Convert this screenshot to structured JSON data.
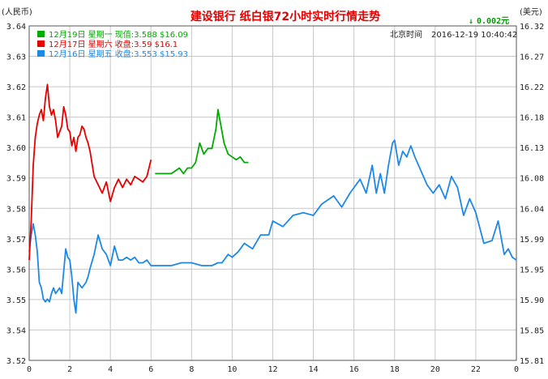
{
  "chart_data": {
    "type": "line",
    "title": "建设银行  纸白银72小时实时行情走势",
    "left_unit": "(人民币)",
    "right_unit": "(美元)",
    "change": {
      "arrow": "↓",
      "value": "0.002元"
    },
    "clock": {
      "label": "北京时间",
      "value": "2016-12-19  10:40:42"
    },
    "y_left": {
      "ticks": [
        "3.64",
        "3.63",
        "3.62",
        "3.61",
        "3.60",
        "3.59",
        "3.58",
        "3.57",
        "3.56",
        "3.55",
        "3.54",
        "3.52"
      ]
    },
    "y_right": {
      "ticks": [
        "16.32",
        "16.27",
        "16.22",
        "16.18",
        "16.13",
        "16.08",
        "16.04",
        "15.99",
        "15.95",
        "15.90",
        "15.85",
        "15.81"
      ]
    },
    "x_ticks": [
      "0",
      "2",
      "4",
      "6",
      "8",
      "10",
      "12",
      "14",
      "16",
      "18",
      "20",
      "22",
      "0"
    ],
    "ylim": [
      3.52,
      3.64
    ],
    "xlim": [
      0,
      24
    ],
    "grid": true,
    "legend_position": "top-left",
    "colors": {
      "green": "#00aa00",
      "red": "#e60000",
      "blue": "#1e88e5",
      "title": "#e60000",
      "grid": "#c8c8c8"
    },
    "series": [
      {
        "name": "12月19日  星期一  现值:3.588  $16.09",
        "color": "#00aa00",
        "x": [
          6.2,
          7.0,
          7.2,
          7.4,
          7.6,
          7.8,
          8.0,
          8.2,
          8.4,
          8.6,
          8.8,
          9.0,
          9.2,
          9.3,
          9.4,
          9.5,
          9.6,
          9.8,
          10.0,
          10.2,
          10.4,
          10.6,
          10.8
        ],
        "y": [
          3.587,
          3.587,
          3.588,
          3.589,
          3.587,
          3.589,
          3.589,
          3.591,
          3.598,
          3.594,
          3.596,
          3.596,
          3.603,
          3.61,
          3.606,
          3.602,
          3.598,
          3.594,
          3.593,
          3.592,
          3.593,
          3.591,
          3.591
        ]
      },
      {
        "name": "12月17日  星期六  收盘:3.59  $16.1",
        "color": "#e60000",
        "x": [
          0.0,
          0.1,
          0.2,
          0.3,
          0.4,
          0.5,
          0.6,
          0.7,
          0.8,
          0.9,
          1.0,
          1.1,
          1.2,
          1.3,
          1.4,
          1.5,
          1.6,
          1.7,
          1.8,
          1.9,
          2.0,
          2.1,
          2.2,
          2.3,
          2.4,
          2.5,
          2.6,
          2.7,
          2.8,
          2.9,
          3.0,
          3.2,
          3.4,
          3.6,
          3.8,
          4.0,
          4.2,
          4.4,
          4.6,
          4.8,
          5.0,
          5.2,
          5.4,
          5.6,
          5.8,
          6.0
        ],
        "y": [
          3.556,
          3.57,
          3.59,
          3.6,
          3.605,
          3.608,
          3.61,
          3.606,
          3.614,
          3.619,
          3.611,
          3.608,
          3.61,
          3.606,
          3.6,
          3.602,
          3.604,
          3.611,
          3.608,
          3.603,
          3.602,
          3.597,
          3.6,
          3.595,
          3.6,
          3.601,
          3.604,
          3.603,
          3.6,
          3.598,
          3.595,
          3.586,
          3.583,
          3.58,
          3.584,
          3.577,
          3.582,
          3.585,
          3.582,
          3.585,
          3.583,
          3.586,
          3.585,
          3.584,
          3.586,
          3.592
        ]
      },
      {
        "name": "12月16日  星期五  收盘:3.553  $15.93",
        "color": "#1e88e5",
        "x": [
          0.0,
          0.1,
          0.2,
          0.3,
          0.4,
          0.5,
          0.6,
          0.7,
          0.8,
          0.9,
          1.0,
          1.1,
          1.2,
          1.3,
          1.4,
          1.5,
          1.6,
          1.7,
          1.8,
          1.9,
          2.0,
          2.1,
          2.2,
          2.3,
          2.4,
          2.5,
          2.6,
          2.7,
          2.8,
          2.9,
          3.0,
          3.2,
          3.4,
          3.6,
          3.8,
          4.0,
          4.2,
          4.4,
          4.6,
          4.8,
          5.0,
          5.2,
          5.4,
          5.6,
          5.8,
          6.0,
          6.2,
          6.5,
          7.0,
          7.5,
          8.0,
          8.5,
          9.0,
          9.3,
          9.5,
          9.8,
          10.0,
          10.3,
          10.6,
          11.0,
          11.4,
          11.8,
          12.0,
          12.5,
          13.0,
          13.5,
          14.0,
          14.4,
          14.8,
          15.0,
          15.4,
          15.8,
          16.0,
          16.3,
          16.6,
          16.9,
          17.1,
          17.3,
          17.5,
          17.7,
          17.9,
          18.0,
          18.2,
          18.4,
          18.6,
          18.8,
          19.0,
          19.3,
          19.6,
          19.9,
          20.2,
          20.5,
          20.8,
          21.1,
          21.4,
          21.7,
          22.0,
          22.4,
          22.8,
          23.1,
          23.4,
          23.6,
          23.8,
          24.0
        ],
        "y": [
          3.559,
          3.565,
          3.569,
          3.565,
          3.559,
          3.548,
          3.546,
          3.542,
          3.541,
          3.542,
          3.541,
          3.544,
          3.546,
          3.544,
          3.545,
          3.546,
          3.544,
          3.552,
          3.56,
          3.557,
          3.556,
          3.55,
          3.542,
          3.537,
          3.548,
          3.547,
          3.546,
          3.547,
          3.548,
          3.55,
          3.553,
          3.558,
          3.565,
          3.56,
          3.558,
          3.554,
          3.561,
          3.556,
          3.556,
          3.557,
          3.556,
          3.557,
          3.555,
          3.555,
          3.556,
          3.554,
          3.554,
          3.554,
          3.554,
          3.555,
          3.555,
          3.554,
          3.554,
          3.555,
          3.555,
          3.558,
          3.557,
          3.559,
          3.562,
          3.56,
          3.565,
          3.565,
          3.57,
          3.568,
          3.572,
          3.573,
          3.572,
          3.576,
          3.578,
          3.579,
          3.575,
          3.58,
          3.582,
          3.585,
          3.58,
          3.59,
          3.58,
          3.587,
          3.58,
          3.59,
          3.598,
          3.599,
          3.59,
          3.595,
          3.593,
          3.597,
          3.593,
          3.588,
          3.583,
          3.58,
          3.583,
          3.578,
          3.586,
          3.582,
          3.572,
          3.578,
          3.573,
          3.562,
          3.563,
          3.57,
          3.558,
          3.56,
          3.557,
          3.556
        ]
      }
    ]
  }
}
